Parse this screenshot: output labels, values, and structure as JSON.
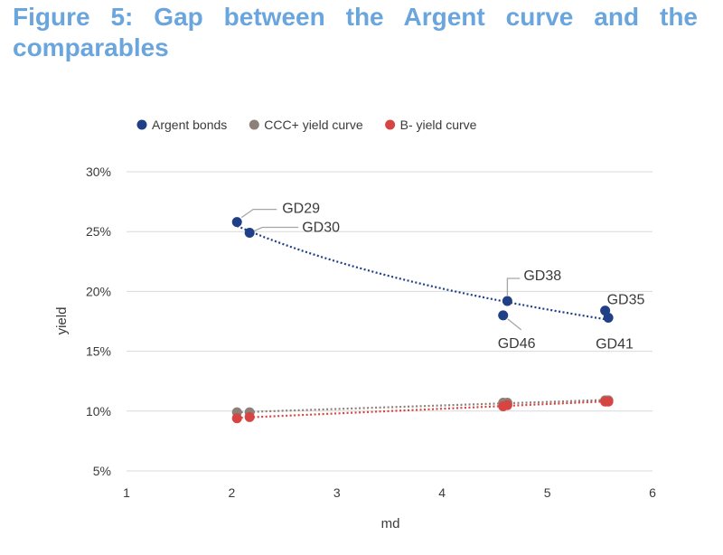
{
  "figure_title": "Figure 5: Gap between the Argent curve and the comparables",
  "chart_data": {
    "type": "scatter",
    "title": "Figure 5: Gap between the Argent curve and the comparables",
    "xlabel": "md",
    "ylabel": "yield",
    "xlim": [
      1,
      6
    ],
    "ylim": [
      5,
      30
    ],
    "x_ticks": [
      1,
      2,
      3,
      4,
      5,
      6
    ],
    "y_ticks": [
      5,
      10,
      15,
      20,
      25,
      30
    ],
    "y_tick_format": "percent",
    "grid": "horizontal",
    "legend_position": "top",
    "series": [
      {
        "name": "Argent bonds",
        "color": "#1f3f86",
        "trendline": "log",
        "points": [
          {
            "label": "GD29",
            "x": 2.05,
            "y": 25.8
          },
          {
            "label": "GD30",
            "x": 2.17,
            "y": 24.9
          },
          {
            "label": "GD38",
            "x": 4.62,
            "y": 19.2
          },
          {
            "label": "GD46",
            "x": 4.58,
            "y": 18.0
          },
          {
            "label": "GD35",
            "x": 5.55,
            "y": 18.4
          },
          {
            "label": "GD41",
            "x": 5.58,
            "y": 17.8
          }
        ]
      },
      {
        "name": "CCC+ yield curve",
        "color": "#8c8078",
        "trendline": "linear",
        "points": [
          {
            "x": 2.05,
            "y": 9.9
          },
          {
            "x": 2.17,
            "y": 9.9
          },
          {
            "x": 4.58,
            "y": 10.7
          },
          {
            "x": 4.62,
            "y": 10.7
          },
          {
            "x": 5.55,
            "y": 10.9
          },
          {
            "x": 5.58,
            "y": 10.9
          }
        ]
      },
      {
        "name": "B- yield curve",
        "color": "#d64541",
        "trendline": "linear",
        "points": [
          {
            "x": 2.05,
            "y": 9.4
          },
          {
            "x": 2.17,
            "y": 9.5
          },
          {
            "x": 4.58,
            "y": 10.4
          },
          {
            "x": 4.62,
            "y": 10.5
          },
          {
            "x": 5.55,
            "y": 10.8
          },
          {
            "x": 5.58,
            "y": 10.8
          }
        ]
      }
    ]
  }
}
